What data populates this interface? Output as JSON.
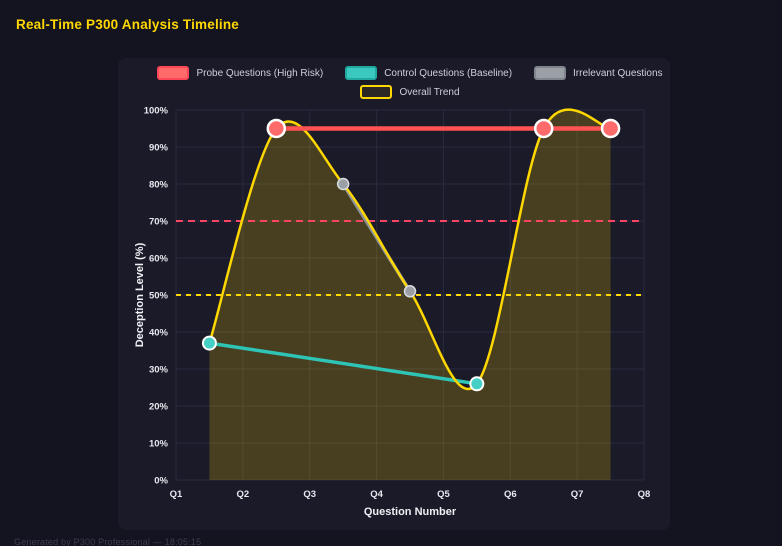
{
  "footer": {
    "text": "Generated by P300 Professional — 18:05:15"
  },
  "chart_data": {
    "type": "line",
    "title": "Real-Time P300 Analysis Timeline",
    "xlabel": "Question Number",
    "ylabel": "Deception Level (%)",
    "x_tick_labels": [
      "Q1",
      "Q2",
      "Q3",
      "Q4",
      "Q5",
      "Q6",
      "Q7",
      "Q8"
    ],
    "x_tick_values": [
      1,
      2,
      3,
      4,
      5,
      6,
      7,
      8
    ],
    "y_tick_labels": [
      "0%",
      "10%",
      "20%",
      "30%",
      "40%",
      "50%",
      "60%",
      "70%",
      "80%",
      "90%",
      "100%"
    ],
    "y_tick_values": [
      0,
      10,
      20,
      30,
      40,
      50,
      60,
      70,
      80,
      90,
      100
    ],
    "x_range": [
      1,
      8
    ],
    "y_range": [
      0,
      100
    ],
    "grid": true,
    "grid_color": "#2a2a3e",
    "tick_color": "#e6e8ee",
    "legend_position": "top",
    "legend_rows": [
      [
        0,
        1,
        2
      ],
      [
        3
      ]
    ],
    "draw_order": [
      1,
      2,
      3,
      0
    ],
    "series": [
      {
        "name": "Probe Questions (High Risk)",
        "points": [
          [
            2.5,
            95
          ],
          [
            6.5,
            95
          ],
          [
            7.5,
            95
          ]
        ],
        "line_color": "#ff5252",
        "line_width": 4.5,
        "smooth": false,
        "marker_radius": 8.5,
        "marker_fill": "#ff6b6b",
        "marker_stroke": "#ffffff",
        "marker_stroke_width": 2.5,
        "swatch_fill": "#ff6b6b",
        "swatch_border": "#ff4757"
      },
      {
        "name": "Control Questions (Baseline)",
        "points": [
          [
            1.5,
            37
          ],
          [
            5.5,
            26
          ]
        ],
        "line_color": "#2ec4b6",
        "line_width": 3.5,
        "smooth": false,
        "marker_radius": 6.5,
        "marker_fill": "#45d0c6",
        "marker_stroke": "#ffffff",
        "marker_stroke_width": 2,
        "swatch_fill": "#3bc9bf",
        "swatch_border": "#1fa99f"
      },
      {
        "name": "Irrelevant Questions",
        "points": [
          [
            3.5,
            80
          ],
          [
            4.5,
            51
          ]
        ],
        "line_color": "#8d939b",
        "line_width": 3.5,
        "smooth": false,
        "marker_radius": 5.5,
        "marker_fill": "#9aa0a6",
        "marker_stroke": "#d9dcdf",
        "marker_stroke_width": 1.5,
        "swatch_fill": "#9aa0a6",
        "swatch_border": "#7f858c"
      },
      {
        "name": "Overall Trend",
        "points": [
          [
            1.5,
            37
          ],
          [
            2.5,
            95
          ],
          [
            3.5,
            80
          ],
          [
            4.5,
            51
          ],
          [
            5.5,
            26
          ],
          [
            6.5,
            95
          ],
          [
            7.5,
            95
          ]
        ],
        "line_color": "#ffd700",
        "line_width": 2.5,
        "smooth": true,
        "area_fill": "rgba(255,215,0,0.20)",
        "marker_radius": 0,
        "marker_fill": "#ffd700",
        "marker_stroke": "#ffffff",
        "marker_stroke_width": 0,
        "swatch_fill": "rgba(255,215,0,0.08)",
        "swatch_border": "#ffd700"
      }
    ],
    "thresholds": [
      {
        "value": 70,
        "color": "#ff4466",
        "dash": "7 5"
      },
      {
        "value": 50,
        "color": "#ffd700",
        "dash": "5 5"
      }
    ]
  }
}
